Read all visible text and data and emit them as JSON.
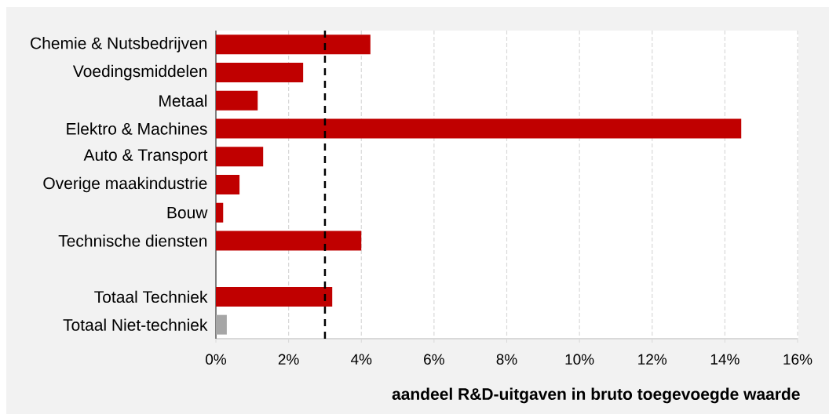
{
  "chart_data": {
    "type": "bar",
    "orientation": "horizontal",
    "categories": [
      "Chemie & Nutsbedrijven",
      "Voedingsmiddelen",
      "Metaal",
      "Elektro & Machines",
      "Auto & Transport",
      "Overige maakindustrie",
      "Bouw",
      "Technische diensten",
      null,
      "Totaal Techniek",
      "Totaal Niet-techniek"
    ],
    "values": [
      4.25,
      2.4,
      1.15,
      14.45,
      1.3,
      0.65,
      0.2,
      4.0,
      null,
      3.2,
      0.3
    ],
    "colors": [
      "#c00000",
      "#c00000",
      "#c00000",
      "#c00000",
      "#c00000",
      "#c00000",
      "#c00000",
      "#c00000",
      null,
      "#c00000",
      "#a6a6a6"
    ],
    "xlim": [
      0,
      16
    ],
    "xticks": [
      {
        "value": 0,
        "label": "0%"
      },
      {
        "value": 2,
        "label": "2%"
      },
      {
        "value": 4,
        "label": "4%"
      },
      {
        "value": 6,
        "label": "6%"
      },
      {
        "value": 8,
        "label": "8%"
      },
      {
        "value": 10,
        "label": "10%"
      },
      {
        "value": 12,
        "label": "12%"
      },
      {
        "value": 14,
        "label": "14%"
      },
      {
        "value": 16,
        "label": "16%"
      }
    ],
    "xlabel": "aandeel R&D-uitgaven in bruto toegevoegde waarde",
    "grid": "x",
    "ref_lines": [
      {
        "axis": "x",
        "value": 3,
        "color": "#000000",
        "line_style": "dashed"
      }
    ]
  }
}
